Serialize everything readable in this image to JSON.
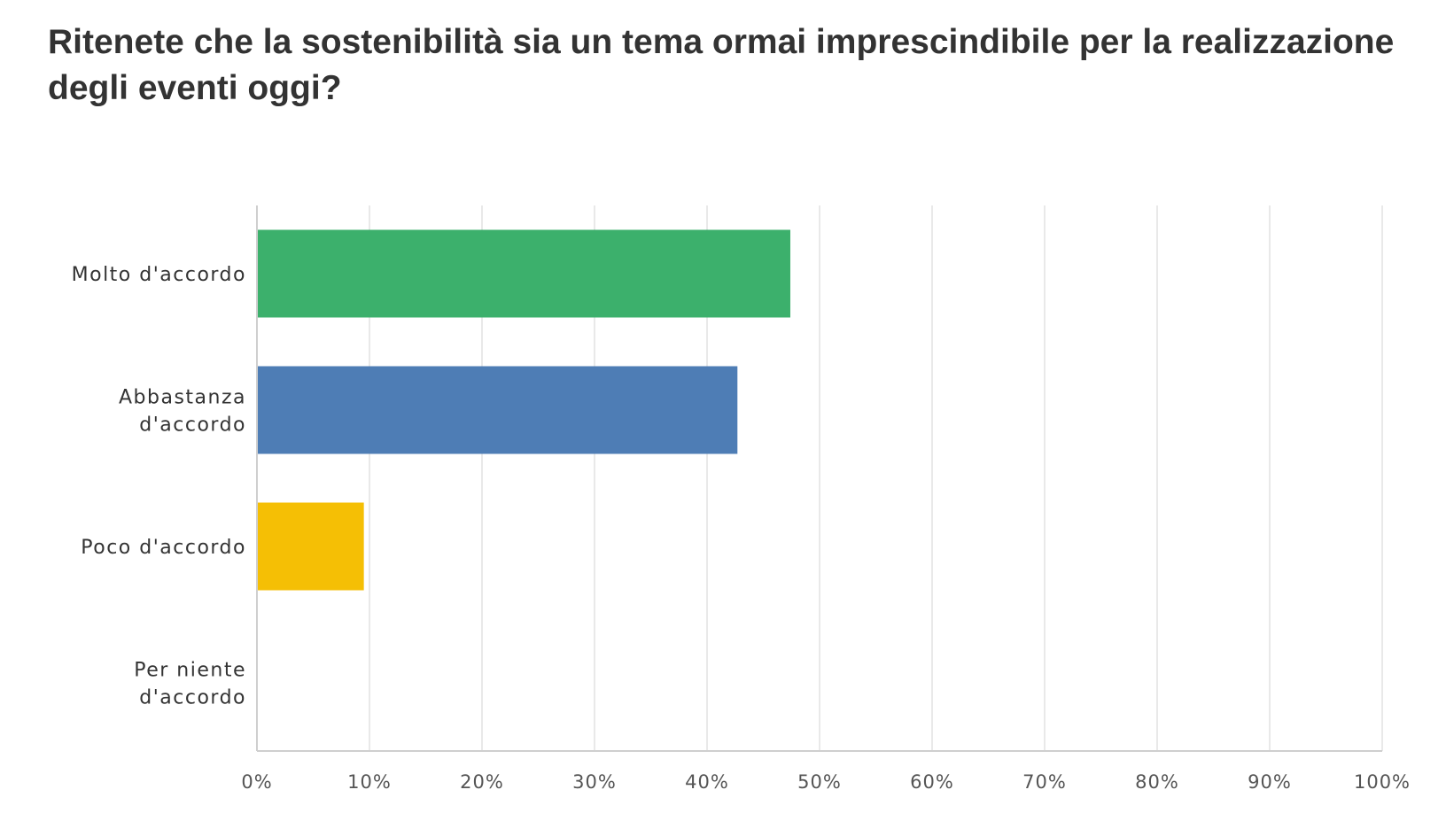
{
  "chart_data": {
    "type": "bar",
    "orientation": "horizontal",
    "title": "Ritenete che la sostenibilità sia un tema ormai imprescindibile per la realizzazione degli eventi oggi?",
    "categories": [
      "Molto d'accordo",
      "Abbastanza d'accordo",
      "Poco d'accordo",
      "Per niente d'accordo"
    ],
    "category_lines": [
      [
        "Molto d'accordo"
      ],
      [
        "Abbastanza",
        "d'accordo"
      ],
      [
        "Poco d'accordo"
      ],
      [
        "Per niente",
        "d'accordo"
      ]
    ],
    "values": [
      47.4,
      42.7,
      9.5,
      0
    ],
    "unit": "%",
    "xlim": [
      0,
      100
    ],
    "xticks": [
      0,
      10,
      20,
      30,
      40,
      50,
      60,
      70,
      80,
      90,
      100
    ],
    "xtick_labels": [
      "0%",
      "10%",
      "20%",
      "30%",
      "40%",
      "50%",
      "60%",
      "70%",
      "80%",
      "90%",
      "100%"
    ],
    "grid": true,
    "legend": "none",
    "colors": [
      "#3cb06c",
      "#4e7db5",
      "#f5bf05",
      "#d8d8d8"
    ]
  }
}
